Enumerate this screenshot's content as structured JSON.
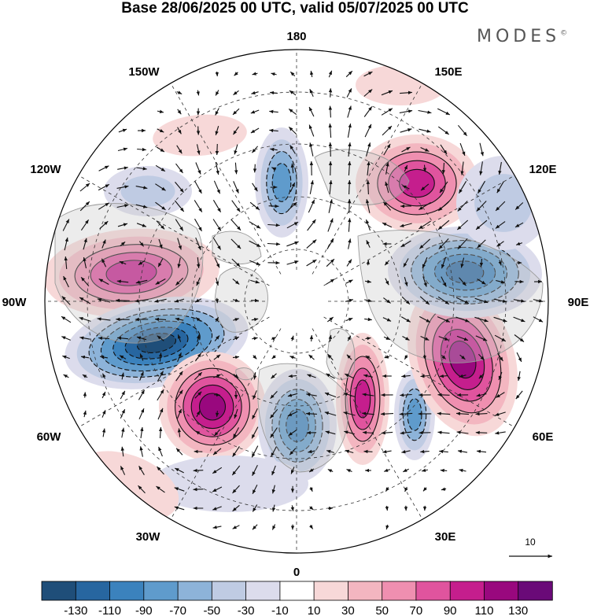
{
  "header": {
    "title": "Base 28/06/2025 00 UTC, valid 05/07/2025 00 UTC",
    "brand": "MODES",
    "brand_mark": "©"
  },
  "map": {
    "projection": "north polar stereographic",
    "field": "anomaly (shaded) with wind vectors",
    "longitude_labels": {
      "top": "180",
      "top_right": "150E",
      "upper_right": "120E",
      "right": "90E",
      "lower_right": "60E",
      "bottom_right": "30E",
      "bottom": "0",
      "bottom_left": "30W",
      "lower_left": "60W",
      "left": "90W",
      "upper_left": "120W",
      "top_left": "150W"
    },
    "reference_vector": {
      "label": "10"
    },
    "colors": {
      "neg_130": "#1f4e79",
      "neg_110": "#2766a0",
      "neg_90": "#3b82bd",
      "neg_70": "#5f9bcc",
      "neg_50": "#8db3d9",
      "neg_30": "#bfcbe3",
      "neg_10": "#dcdcec",
      "zero": "#ffffff",
      "pos_10": "#f7d8d8",
      "pos_30": "#f3b6c0",
      "pos_50": "#ef8fb0",
      "pos_70": "#e0549e",
      "pos_90": "#c51e8d",
      "pos_110": "#99087e",
      "pos_130": "#6a0a78",
      "land_outline": "#9a9a9a",
      "contour": "#111111"
    }
  },
  "colorbar": {
    "ticks": [
      "-130",
      "-110",
      "-90",
      "-70",
      "-50",
      "-30",
      "-10",
      "10",
      "30",
      "50",
      "70",
      "90",
      "110",
      "130"
    ],
    "colors": [
      "#1f4e79",
      "#2766a0",
      "#3b82bd",
      "#5f9bcc",
      "#8db3d9",
      "#bfcbe3",
      "#dcdcec",
      "#ffffff",
      "#f7d8d8",
      "#f3b6c0",
      "#ef8fb0",
      "#e0549e",
      "#c51e8d",
      "#99087e",
      "#6a0a78"
    ]
  }
}
